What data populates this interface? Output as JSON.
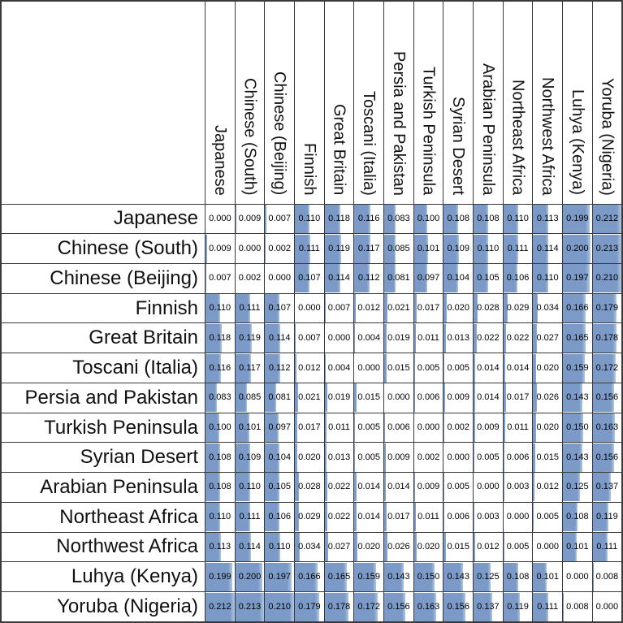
{
  "chart_data": {
    "type": "table",
    "description": "Pairwise distance matrix with in-cell data bars",
    "categories": [
      "Japanese",
      "Chinese (South)",
      "Chinese (Beijing)",
      "Finnish",
      "Great Britain",
      "Toscani (Italia)",
      "Persia and Pakistan",
      "Turkish Peninsula",
      "Syrian Desert",
      "Arabian Peninsula",
      "Northeast Africa",
      "Northwest Africa",
      "Luhya (Kenya)",
      "Yoruba (Nigeria)"
    ],
    "matrix": [
      [
        0.0,
        0.009,
        0.007,
        0.11,
        0.118,
        0.116,
        0.083,
        0.1,
        0.108,
        0.108,
        0.11,
        0.113,
        0.199,
        0.212
      ],
      [
        0.009,
        0.0,
        0.002,
        0.111,
        0.119,
        0.117,
        0.085,
        0.101,
        0.109,
        0.11,
        0.111,
        0.114,
        0.2,
        0.213
      ],
      [
        0.007,
        0.002,
        0.0,
        0.107,
        0.114,
        0.112,
        0.081,
        0.097,
        0.104,
        0.105,
        0.106,
        0.11,
        0.197,
        0.21
      ],
      [
        0.11,
        0.111,
        0.107,
        0.0,
        0.007,
        0.012,
        0.021,
        0.017,
        0.02,
        0.028,
        0.029,
        0.034,
        0.166,
        0.179
      ],
      [
        0.118,
        0.119,
        0.114,
        0.007,
        0.0,
        0.004,
        0.019,
        0.011,
        0.013,
        0.022,
        0.022,
        0.027,
        0.165,
        0.178
      ],
      [
        0.116,
        0.117,
        0.112,
        0.012,
        0.004,
        0.0,
        0.015,
        0.005,
        0.005,
        0.014,
        0.014,
        0.02,
        0.159,
        0.172
      ],
      [
        0.083,
        0.085,
        0.081,
        0.021,
        0.019,
        0.015,
        0.0,
        0.006,
        0.009,
        0.014,
        0.017,
        0.026,
        0.143,
        0.156
      ],
      [
        0.1,
        0.101,
        0.097,
        0.017,
        0.011,
        0.005,
        0.006,
        0.0,
        0.002,
        0.009,
        0.011,
        0.02,
        0.15,
        0.163
      ],
      [
        0.108,
        0.109,
        0.104,
        0.02,
        0.013,
        0.005,
        0.009,
        0.002,
        0.0,
        0.005,
        0.006,
        0.015,
        0.143,
        0.156
      ],
      [
        0.108,
        0.11,
        0.105,
        0.028,
        0.022,
        0.014,
        0.014,
        0.009,
        0.005,
        0.0,
        0.003,
        0.012,
        0.125,
        0.137
      ],
      [
        0.11,
        0.111,
        0.106,
        0.029,
        0.022,
        0.014,
        0.017,
        0.011,
        0.006,
        0.003,
        0.0,
        0.005,
        0.108,
        0.119
      ],
      [
        0.113,
        0.114,
        0.11,
        0.034,
        0.027,
        0.02,
        0.026,
        0.02,
        0.015,
        0.012,
        0.005,
        0.0,
        0.101,
        0.111
      ],
      [
        0.199,
        0.2,
        0.197,
        0.166,
        0.165,
        0.159,
        0.143,
        0.15,
        0.143,
        0.125,
        0.108,
        0.101,
        0.0,
        0.008
      ],
      [
        0.212,
        0.213,
        0.21,
        0.179,
        0.178,
        0.172,
        0.156,
        0.163,
        0.156,
        0.137,
        0.119,
        0.111,
        0.008,
        0.0
      ]
    ],
    "value_decimals": 3,
    "bar_scale_max": 0.213,
    "bar_color": "#7b9ac8",
    "bar_edge_color": "#b0c7e1",
    "border_color": "#3a3a3a",
    "text_color": "#000000",
    "corner_label": "",
    "grid": "on",
    "legend": "none"
  }
}
